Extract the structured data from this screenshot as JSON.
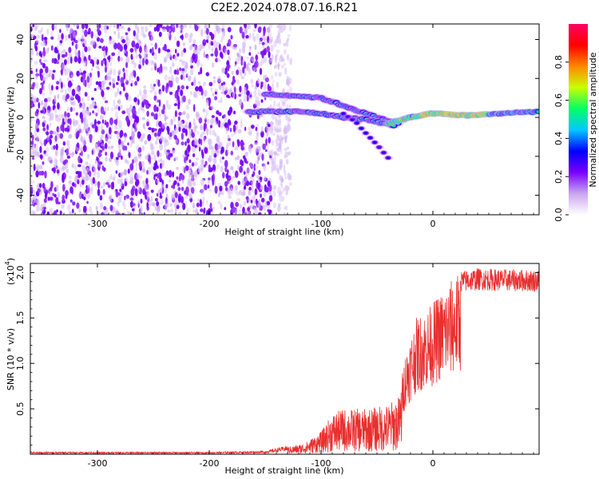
{
  "title": "C2E2.2024.078.07.16.R21",
  "chart_data": [
    {
      "type": "heatmap",
      "title": "C2E2.2024.078.07.16.R21",
      "xlabel": "Height of straight line (km)",
      "ylabel": "Frequency (Hz)",
      "xlim": [
        -360,
        95
      ],
      "ylim": [
        -50,
        48
      ],
      "xticks": [
        -300,
        -200,
        -100,
        0
      ],
      "yticks": [
        -40,
        -20,
        0,
        20,
        40
      ],
      "colorbar": {
        "label": "Normalized spectral amplitude",
        "range": [
          0.0,
          1.0
        ],
        "ticks": [
          0.0,
          0.2,
          0.4,
          0.6,
          0.8
        ],
        "colors": [
          "#ffffff",
          "#c9a6f0",
          "#7a00ff",
          "#0000ff",
          "#00c8ff",
          "#00ff66",
          "#c8ff00",
          "#ff8800",
          "#ff0000",
          "#ff0066"
        ]
      },
      "features": {
        "noise_region_x": [
          -360,
          -145
        ],
        "upper_track": [
          [
            -150,
            12
          ],
          [
            -120,
            11
          ],
          [
            -100,
            10
          ],
          [
            -80,
            6
          ],
          [
            -60,
            2
          ],
          [
            -40,
            -2
          ],
          [
            -30,
            -3
          ]
        ],
        "lower_track": [
          [
            -165,
            3
          ],
          [
            -140,
            3
          ],
          [
            -120,
            3
          ],
          [
            -100,
            2
          ],
          [
            -80,
            0
          ],
          [
            -60,
            -1
          ],
          [
            -45,
            -3
          ],
          [
            -35,
            -4
          ]
        ],
        "descending_branch": [
          [
            -80,
            2
          ],
          [
            -70,
            -2
          ],
          [
            -60,
            -8
          ],
          [
            -50,
            -14
          ],
          [
            -40,
            -21
          ]
        ],
        "carrier_track": [
          [
            -40,
            -3
          ],
          [
            -20,
            0
          ],
          [
            0,
            2
          ],
          [
            30,
            1
          ],
          [
            60,
            2
          ],
          [
            95,
            3
          ]
        ]
      }
    },
    {
      "type": "line",
      "xlabel": "Height of straight line (km)",
      "ylabel": "SNR (10 * v/v)",
      "yscale_label": "(x10",
      "yscale_exp": "4",
      "yscale_close": ")",
      "xlim": [
        -360,
        95
      ],
      "ylim": [
        0,
        2.1
      ],
      "xticks": [
        -300,
        -200,
        -100,
        0
      ],
      "yticks": [
        0.5,
        1.0,
        1.5,
        2.0
      ],
      "series": [
        {
          "color": "#e8302f",
          "envelope": [
            [
              -360,
              0.02
            ],
            [
              -200,
              0.02
            ],
            [
              -150,
              0.03
            ],
            [
              -130,
              0.08
            ],
            [
              -115,
              0.12
            ],
            [
              -100,
              0.25
            ],
            [
              -90,
              0.45
            ],
            [
              -80,
              0.5
            ],
            [
              -60,
              0.5
            ],
            [
              -40,
              0.55
            ],
            [
              -30,
              0.65
            ],
            [
              -25,
              1.1
            ],
            [
              -15,
              1.5
            ],
            [
              -5,
              1.6
            ],
            [
              5,
              1.75
            ],
            [
              15,
              1.9
            ],
            [
              25,
              2.02
            ],
            [
              40,
              2.05
            ],
            [
              60,
              2.04
            ],
            [
              95,
              2.03
            ]
          ]
        }
      ]
    }
  ]
}
